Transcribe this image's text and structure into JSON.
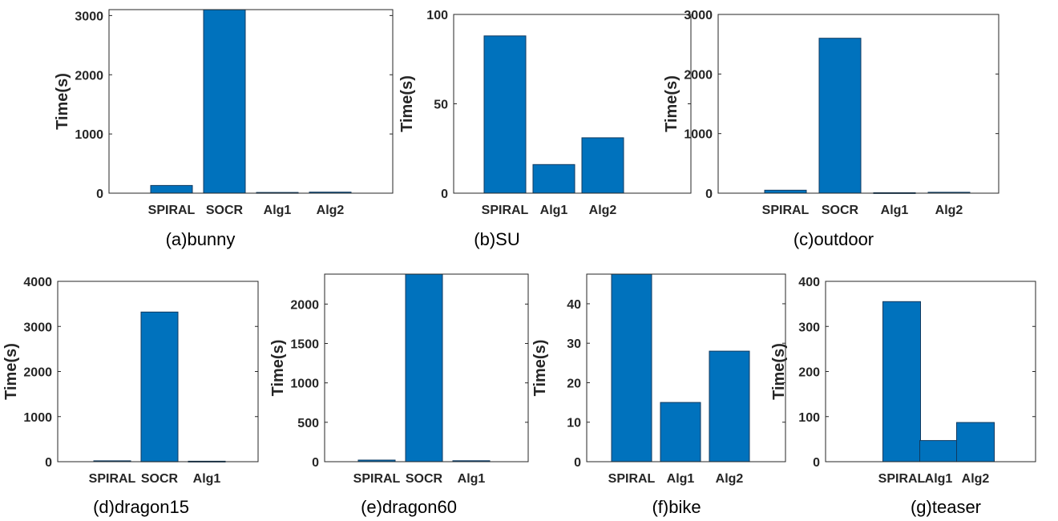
{
  "colors": {
    "bar": "#0072bd",
    "axis": "#262626"
  },
  "chart_data": [
    {
      "type": "bar",
      "caption": "(a)bunny",
      "ylabel": "Time(s)",
      "categories": [
        "SPIRAL",
        "SOCR",
        "Alg1",
        "Alg2"
      ],
      "values": [
        130,
        3100,
        12,
        18
      ],
      "ylim": [
        0,
        3100
      ],
      "yticks": [
        0,
        1000,
        2000,
        3000
      ],
      "grid": false
    },
    {
      "type": "bar",
      "caption": "(b)SU",
      "ylabel": "Time(s)",
      "categories": [
        "SPIRAL",
        "Alg1",
        "Alg2"
      ],
      "values": [
        88,
        16,
        31
      ],
      "ylim": [
        0,
        100
      ],
      "yticks": [
        0,
        50,
        100
      ],
      "grid": false
    },
    {
      "type": "bar",
      "caption": "(c)outdoor",
      "ylabel": "Time(s)",
      "categories": [
        "SPIRAL",
        "SOCR",
        "Alg1",
        "Alg2"
      ],
      "values": [
        50,
        2600,
        8,
        15
      ],
      "ylim": [
        0,
        3000
      ],
      "yticks": [
        0,
        1000,
        2000,
        3000
      ],
      "grid": false
    },
    {
      "type": "bar",
      "caption": "(d)dragon15",
      "ylabel": "Time(s)",
      "categories": [
        "SPIRAL",
        "SOCR",
        "Alg1"
      ],
      "values": [
        20,
        3320,
        10
      ],
      "ylim": [
        0,
        4000
      ],
      "yticks": [
        0,
        1000,
        2000,
        3000,
        4000
      ],
      "grid": false
    },
    {
      "type": "bar",
      "caption": "(e)dragon60",
      "ylabel": "Time(s)",
      "categories": [
        "SPIRAL",
        "SOCR",
        "Alg1"
      ],
      "values": [
        20,
        2380,
        12
      ],
      "ylim": [
        0,
        2380
      ],
      "yticks": [
        0,
        500,
        1000,
        1500,
        2000
      ],
      "grid": false
    },
    {
      "type": "bar",
      "caption": "(f)bike",
      "ylabel": "Time(s)",
      "categories": [
        "SPIRAL",
        "Alg1",
        "Alg2"
      ],
      "values": [
        47.5,
        15,
        28
      ],
      "ylim": [
        0,
        47.5
      ],
      "yticks": [
        0,
        10,
        20,
        30,
        40
      ],
      "grid": false
    },
    {
      "type": "bar",
      "caption": "(g)teaser",
      "ylabel": "Time(s)",
      "categories": [
        "SPIRAL",
        "Alg1",
        "Alg2"
      ],
      "values": [
        355,
        47,
        87
      ],
      "ylim": [
        0,
        400
      ],
      "yticks": [
        0,
        100,
        200,
        300,
        400
      ],
      "grid": false
    }
  ]
}
